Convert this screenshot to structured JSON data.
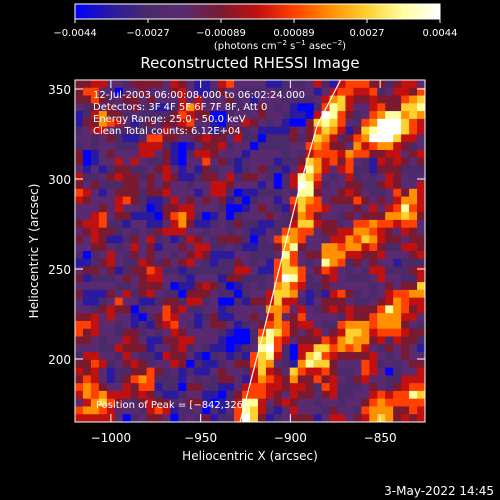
{
  "footer": {
    "timestamp": "3-May-2022 14:45"
  },
  "colorbar": {
    "ticks": [
      "−0.0044",
      "−0.0027",
      "−0.00089",
      "0.00089",
      "0.0027",
      "0.0044"
    ],
    "units_prefix": "(photons cm",
    "units_exp1": "−2",
    "units_mid": " s",
    "units_exp2": "−1",
    "units_mid2": " asec",
    "units_exp3": "−2",
    "units_suffix": ")",
    "colors": [
      "#0000ff",
      "#2a1aa0",
      "#4a2a6a",
      "#5a2a70",
      "#7a1a30",
      "#c01010",
      "#ff4000",
      "#ff9000",
      "#ffd030",
      "#ffffa0",
      "#ffffff"
    ]
  },
  "chart_data": {
    "type": "heatmap",
    "title": "Reconstructed RHESSI Image",
    "xlabel": "Heliocentric X (arcsec)",
    "ylabel": "Heliocentric Y (arcsec)",
    "xlim": [
      -1020,
      -825
    ],
    "ylim": [
      165,
      355
    ],
    "x_ticks": [
      -1000,
      -950,
      -900,
      -850
    ],
    "x_tick_labels": [
      "−1000",
      "−950",
      "−900",
      "−850"
    ],
    "y_ticks": [
      200,
      250,
      300,
      350
    ],
    "y_tick_labels": [
      "200",
      "250",
      "300",
      "350"
    ],
    "limb_x": [
      -928,
      -915,
      -905,
      -895,
      -885,
      -872
    ],
    "limb_y": [
      165,
      215,
      255,
      295,
      330,
      355
    ],
    "peak": {
      "x": -842,
      "y": 326
    },
    "annotations": [
      "12-Jul-2003 06:00:08.000 to 06:02:24.000",
      "Detectors: 3F 4F 5F 6F 7F 8F, Att 0",
      "Energy Range: 25.0 - 50.0 keV",
      "Clean     Total counts: 6.12E+04"
    ],
    "peak_label": "Position of Peak = [−842,326]"
  }
}
